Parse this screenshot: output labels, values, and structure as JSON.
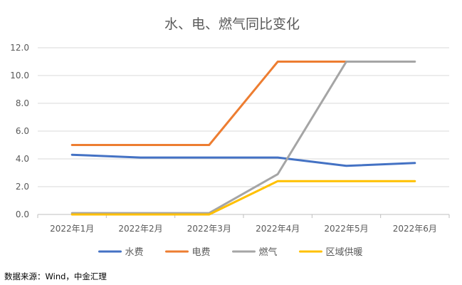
{
  "chart_data": {
    "type": "line",
    "title": "水、电、燃气同比变化",
    "categories": [
      "2022年1月",
      "2022年2月",
      "2022年3月",
      "2022年4月",
      "2022年5月",
      "2022年6月"
    ],
    "series": [
      {
        "name": "水费",
        "color": "#4472C4",
        "values": [
          4.3,
          4.1,
          4.1,
          4.1,
          3.5,
          3.7
        ]
      },
      {
        "name": "电费",
        "color": "#ED7D31",
        "values": [
          5.0,
          5.0,
          5.0,
          11.0,
          11.0,
          null
        ]
      },
      {
        "name": "燃气",
        "color": "#A5A5A5",
        "values": [
          0.1,
          0.1,
          0.1,
          2.9,
          11.0,
          11.0
        ]
      },
      {
        "name": "区域供暖",
        "color": "#FFC000",
        "values": [
          0.0,
          0.0,
          0.0,
          2.4,
          2.4,
          2.4
        ]
      }
    ],
    "ylim": [
      0,
      12
    ],
    "yticks": [
      "0.0",
      "2.0",
      "4.0",
      "6.0",
      "8.0",
      "10.0",
      "12.0"
    ],
    "grid": "horizontal",
    "legend": "bottom"
  },
  "source_text": "数据来源：Wind，中金汇理"
}
